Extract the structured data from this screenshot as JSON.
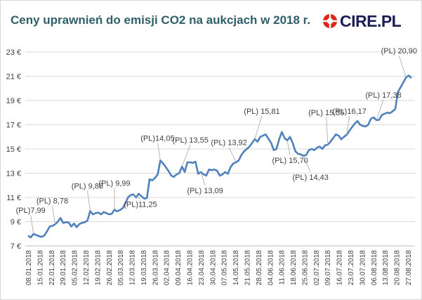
{
  "title": "Ceny uprawnień do emisji CO2 na aukcjach w 2018 r.",
  "logo": {
    "text": "CIRE.PL",
    "brand_color": "#e1251b",
    "text_color": "#1d1d55"
  },
  "chart_data": {
    "type": "line",
    "title": "Ceny uprawnień do emisji CO2 na aukcjach w 2018 r.",
    "xlabel": "",
    "ylabel": "",
    "ylim": [
      7,
      23
    ],
    "y_ticks": [
      "7 €",
      "9 €",
      "11 €",
      "13 €",
      "15 €",
      "17 €",
      "19 €",
      "21 €",
      "23 €"
    ],
    "x_ticks": [
      "08.01.2018",
      "15.01.2018",
      "22.01.2018",
      "29.01.2018",
      "05.02.2018",
      "12.02.2018",
      "19.02.2018",
      "26.02.2018",
      "05.03.2018",
      "12.03.2018",
      "19.03.2018",
      "26.03.2018",
      "02.04.2018",
      "09.04.2018",
      "16.04.2018",
      "23.04.2018",
      "30.04.2018",
      "07.05.2018",
      "14.05.2018",
      "21.05.2018",
      "28.05.2018",
      "04.06.2018",
      "11.06.2018",
      "18.06.2018",
      "25.06.2018",
      "02.07.2018",
      "09.07.2018",
      "16.07.2018",
      "23.07.2018",
      "30.07.2018",
      "06.08.2018",
      "13.08.2018",
      "20.08.2018",
      "27.08.2018"
    ],
    "grid": true,
    "line_color": "#4f81bd",
    "series": [
      {
        "values": [
          7.85,
          7.7,
          7.99,
          7.9,
          7.8,
          7.75,
          7.85,
          8.2,
          8.6,
          8.65,
          8.78,
          9.0,
          9.3,
          8.9,
          8.95,
          8.95,
          8.6,
          8.85,
          8.55,
          8.8,
          8.9,
          8.95,
          9.1,
          9.88,
          9.6,
          9.7,
          9.75,
          9.6,
          9.8,
          9.7,
          9.6,
          9.65,
          9.99,
          9.85,
          9.95,
          10.1,
          10.5,
          11.0,
          11.2,
          11.25,
          11.0,
          11.3,
          11.1,
          10.9,
          10.95,
          12.5,
          12.4,
          12.6,
          12.9,
          14.05,
          13.8,
          13.5,
          13.2,
          12.8,
          12.7,
          12.9,
          13.0,
          13.55,
          13.1,
          13.9,
          13.9,
          13.85,
          13.95,
          12.95,
          13.1,
          12.9,
          12.8,
          13.3,
          13.25,
          13.3,
          13.2,
          12.8,
          12.9,
          13.09,
          12.95,
          13.5,
          13.8,
          13.9,
          14.05,
          14.5,
          14.8,
          15.0,
          15.2,
          15.5,
          15.81,
          15.6,
          16.0,
          16.1,
          16.2,
          15.85,
          15.5,
          14.9,
          15.0,
          15.8,
          16.4,
          15.9,
          15.7,
          16.0,
          15.5,
          14.8,
          14.6,
          14.55,
          14.43,
          14.5,
          14.9,
          15.0,
          14.9,
          15.1,
          15.2,
          15.0,
          15.3,
          15.35,
          15.6,
          15.9,
          16.2,
          16.1,
          15.8,
          16.0,
          16.17,
          16.5,
          16.8,
          17.1,
          17.3,
          17.0,
          16.9,
          16.85,
          17.0,
          17.5,
          17.6,
          17.38,
          17.4,
          17.8,
          17.9,
          18.0,
          17.95,
          18.1,
          18.3,
          19.7,
          20.1,
          20.5,
          20.9,
          21.05,
          20.85
        ]
      }
    ],
    "annotations": [
      {
        "text": "(PL)7,99",
        "x": "08.01.2018",
        "y": 7.99
      },
      {
        "text": "(PL) 8,78",
        "x": "22.01.2018",
        "y": 8.78
      },
      {
        "text": "(PL) 9,88",
        "x": "12.02.2018",
        "y": 9.88
      },
      {
        "text": "(PL) 9,99",
        "x": "26.02.2018",
        "y": 9.99
      },
      {
        "text": "(PL)11,25",
        "x": "12.03.2018",
        "y": 11.25
      },
      {
        "text": "(PL)14,05",
        "x": "26.03.2018",
        "y": 14.05
      },
      {
        "text": "(PL) 13,55",
        "x": "09.04.2018",
        "y": 13.55
      },
      {
        "text": "(PL) 13,09",
        "x": "30.04.2018",
        "y": 13.09
      },
      {
        "text": "(PL) 13,92",
        "x": "14.05.2018",
        "y": 13.92
      },
      {
        "text": "(PL) 15,81",
        "x": "21.05.2018",
        "y": 15.81
      },
      {
        "text": "(PL) 15,70",
        "x": "04.06.2018",
        "y": 15.7
      },
      {
        "text": "(PL) 14,43",
        "x": "18.06.2018",
        "y": 14.43
      },
      {
        "text": "(PL) 15,35",
        "x": "02.07.2018",
        "y": 15.35
      },
      {
        "text": "(PL)16,17",
        "x": "16.07.2018",
        "y": 16.17
      },
      {
        "text": "(PL) 17,38",
        "x": "06.08.2018",
        "y": 17.38
      },
      {
        "text": "(PL) 20,90",
        "x": "20.08.2018",
        "y": 20.9
      }
    ]
  }
}
